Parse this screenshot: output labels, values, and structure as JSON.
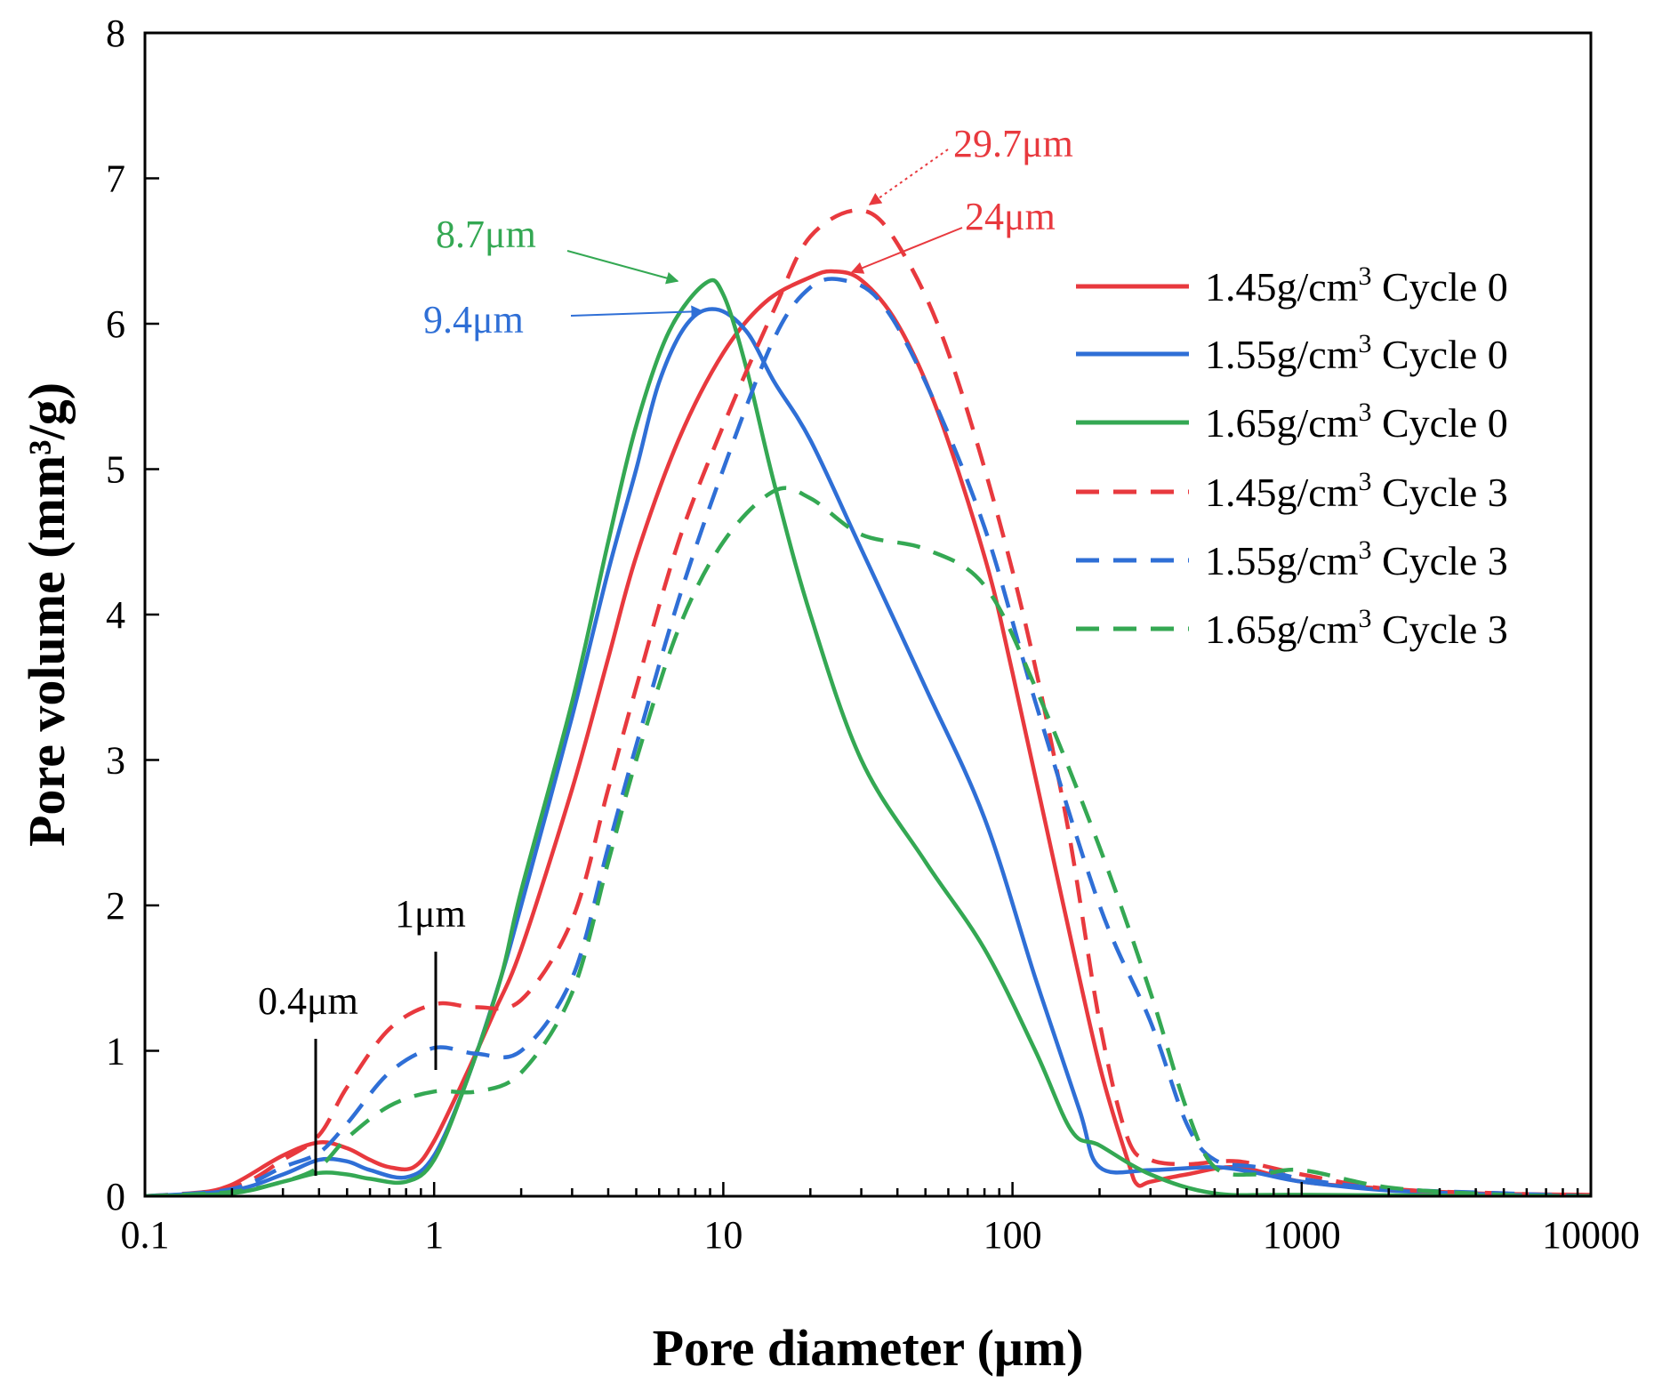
{
  "chart_data": {
    "type": "line",
    "title": "",
    "xlabel": "Pore diameter (μm)",
    "ylabel": "Pore volume (mm³/g)",
    "xscale": "log",
    "xlim": [
      0.1,
      10000
    ],
    "ylim": [
      0,
      8
    ],
    "xticks": [
      {
        "value": 0.1,
        "label": "0.1"
      },
      {
        "value": 1,
        "label": "1"
      },
      {
        "value": 10,
        "label": "10"
      },
      {
        "value": 100,
        "label": "100"
      },
      {
        "value": 1000,
        "label": "1000"
      },
      {
        "value": 10000,
        "label": "10000"
      }
    ],
    "yticks": [
      {
        "value": 0,
        "label": "0"
      },
      {
        "value": 1,
        "label": "1"
      },
      {
        "value": 2,
        "label": "2"
      },
      {
        "value": 3,
        "label": "3"
      },
      {
        "value": 4,
        "label": "4"
      },
      {
        "value": 5,
        "label": "5"
      },
      {
        "value": 6,
        "label": "6"
      },
      {
        "value": 7,
        "label": "7"
      },
      {
        "value": 8,
        "label": "8"
      }
    ],
    "legend_position": "right",
    "series": [
      {
        "name": "1.45g/cm³ Cycle 0",
        "density": "1.45g/cm",
        "cycle": "Cycle 0",
        "color": "#e8393e",
        "dash": "solid",
        "points": [
          [
            0.1,
            0
          ],
          [
            0.15,
            0.02
          ],
          [
            0.2,
            0.08
          ],
          [
            0.3,
            0.28
          ],
          [
            0.4,
            0.37
          ],
          [
            0.5,
            0.33
          ],
          [
            0.6,
            0.25
          ],
          [
            0.7,
            0.2
          ],
          [
            0.85,
            0.2
          ],
          [
            1,
            0.38
          ],
          [
            1.3,
            0.85
          ],
          [
            1.6,
            1.25
          ],
          [
            2,
            1.7
          ],
          [
            3,
            2.8
          ],
          [
            4,
            3.7
          ],
          [
            5,
            4.4
          ],
          [
            7,
            5.2
          ],
          [
            10,
            5.8
          ],
          [
            14,
            6.15
          ],
          [
            20,
            6.32
          ],
          [
            24,
            6.36
          ],
          [
            30,
            6.3
          ],
          [
            40,
            6.0
          ],
          [
            55,
            5.4
          ],
          [
            80,
            4.4
          ],
          [
            100,
            3.6
          ],
          [
            150,
            2.0
          ],
          [
            200,
            0.9
          ],
          [
            250,
            0.25
          ],
          [
            270,
            0.08
          ],
          [
            300,
            0.1
          ],
          [
            400,
            0.15
          ],
          [
            600,
            0.2
          ],
          [
            1000,
            0.1
          ],
          [
            2000,
            0.05
          ],
          [
            4000,
            0.02
          ],
          [
            10000,
            0.01
          ]
        ]
      },
      {
        "name": "1.55g/cm³ Cycle 0",
        "density": "1.55g/cm",
        "cycle": "Cycle 0",
        "color": "#2f6fd6",
        "dash": "solid",
        "points": [
          [
            0.1,
            0
          ],
          [
            0.2,
            0.04
          ],
          [
            0.3,
            0.15
          ],
          [
            0.4,
            0.25
          ],
          [
            0.5,
            0.24
          ],
          [
            0.6,
            0.18
          ],
          [
            0.8,
            0.13
          ],
          [
            1,
            0.28
          ],
          [
            1.3,
            0.8
          ],
          [
            1.7,
            1.5
          ],
          [
            2,
            2.0
          ],
          [
            3,
            3.3
          ],
          [
            4,
            4.3
          ],
          [
            5,
            5.0
          ],
          [
            6,
            5.6
          ],
          [
            7.5,
            6.0
          ],
          [
            9.4,
            6.1
          ],
          [
            12,
            5.95
          ],
          [
            15,
            5.6
          ],
          [
            20,
            5.2
          ],
          [
            30,
            4.45
          ],
          [
            50,
            3.5
          ],
          [
            80,
            2.6
          ],
          [
            120,
            1.5
          ],
          [
            170,
            0.6
          ],
          [
            200,
            0.2
          ],
          [
            300,
            0.18
          ],
          [
            500,
            0.2
          ],
          [
            700,
            0.16
          ],
          [
            1000,
            0.1
          ],
          [
            2000,
            0.04
          ],
          [
            5000,
            0.01
          ],
          [
            10000,
            0
          ]
        ]
      },
      {
        "name": "1.65g/cm³ Cycle 0",
        "density": "1.65g/cm",
        "cycle": "Cycle 0",
        "color": "#34a853",
        "dash": "solid",
        "points": [
          [
            0.1,
            0
          ],
          [
            0.2,
            0.02
          ],
          [
            0.3,
            0.1
          ],
          [
            0.4,
            0.16
          ],
          [
            0.5,
            0.15
          ],
          [
            0.6,
            0.12
          ],
          [
            0.8,
            0.1
          ],
          [
            1,
            0.25
          ],
          [
            1.3,
            0.8
          ],
          [
            1.7,
            1.5
          ],
          [
            2,
            2.1
          ],
          [
            3,
            3.4
          ],
          [
            4,
            4.5
          ],
          [
            5,
            5.3
          ],
          [
            6.5,
            5.95
          ],
          [
            8.7,
            6.28
          ],
          [
            10,
            6.2
          ],
          [
            12,
            5.7
          ],
          [
            15,
            4.9
          ],
          [
            20,
            4.0
          ],
          [
            30,
            3.0
          ],
          [
            50,
            2.3
          ],
          [
            80,
            1.7
          ],
          [
            120,
            1.0
          ],
          [
            160,
            0.45
          ],
          [
            200,
            0.35
          ],
          [
            300,
            0.15
          ],
          [
            500,
            0.02
          ],
          [
            1000,
            0.01
          ],
          [
            10000,
            0
          ]
        ]
      },
      {
        "name": "1.45g/cm³ Cycle 3",
        "density": "1.45g/cm",
        "cycle": "Cycle 3",
        "color": "#e8393e",
        "dash": "dashed",
        "points": [
          [
            0.1,
            0
          ],
          [
            0.2,
            0.06
          ],
          [
            0.3,
            0.25
          ],
          [
            0.4,
            0.42
          ],
          [
            0.5,
            0.75
          ],
          [
            0.7,
            1.15
          ],
          [
            1,
            1.32
          ],
          [
            1.4,
            1.3
          ],
          [
            2,
            1.35
          ],
          [
            3,
            1.9
          ],
          [
            4,
            2.8
          ],
          [
            5,
            3.5
          ],
          [
            7,
            4.5
          ],
          [
            10,
            5.3
          ],
          [
            15,
            6.1
          ],
          [
            20,
            6.6
          ],
          [
            29.7,
            6.78
          ],
          [
            40,
            6.55
          ],
          [
            60,
            5.8
          ],
          [
            100,
            4.3
          ],
          [
            150,
            2.7
          ],
          [
            200,
            1.2
          ],
          [
            250,
            0.4
          ],
          [
            300,
            0.25
          ],
          [
            400,
            0.22
          ],
          [
            600,
            0.24
          ],
          [
            1000,
            0.15
          ],
          [
            2000,
            0.05
          ],
          [
            5000,
            0.02
          ],
          [
            10000,
            0
          ]
        ]
      },
      {
        "name": "1.55g/cm³ Cycle 3",
        "density": "1.55g/cm",
        "cycle": "Cycle 3",
        "color": "#2f6fd6",
        "dash": "dashed",
        "points": [
          [
            0.1,
            0
          ],
          [
            0.2,
            0.05
          ],
          [
            0.3,
            0.2
          ],
          [
            0.4,
            0.3
          ],
          [
            0.5,
            0.5
          ],
          [
            0.7,
            0.85
          ],
          [
            1,
            1.02
          ],
          [
            1.4,
            0.98
          ],
          [
            2,
            1.0
          ],
          [
            3,
            1.5
          ],
          [
            4,
            2.4
          ],
          [
            5,
            3.1
          ],
          [
            7,
            4.1
          ],
          [
            10,
            5.0
          ],
          [
            15,
            5.9
          ],
          [
            20,
            6.25
          ],
          [
            26,
            6.3
          ],
          [
            35,
            6.15
          ],
          [
            50,
            5.6
          ],
          [
            80,
            4.6
          ],
          [
            120,
            3.4
          ],
          [
            200,
            2.0
          ],
          [
            300,
            1.2
          ],
          [
            400,
            0.5
          ],
          [
            500,
            0.25
          ],
          [
            700,
            0.2
          ],
          [
            1000,
            0.12
          ],
          [
            2000,
            0.05
          ],
          [
            5000,
            0.02
          ],
          [
            10000,
            0
          ]
        ]
      },
      {
        "name": "1.65g/cm³ Cycle 3",
        "density": "1.65g/cm",
        "cycle": "Cycle 3",
        "color": "#34a853",
        "dash": "dashed",
        "points": [
          [
            0.1,
            0
          ],
          [
            0.2,
            0.03
          ],
          [
            0.3,
            0.1
          ],
          [
            0.4,
            0.2
          ],
          [
            0.5,
            0.4
          ],
          [
            0.7,
            0.62
          ],
          [
            1,
            0.72
          ],
          [
            1.4,
            0.72
          ],
          [
            2,
            0.85
          ],
          [
            3,
            1.4
          ],
          [
            4,
            2.3
          ],
          [
            5,
            3.0
          ],
          [
            7,
            3.9
          ],
          [
            10,
            4.5
          ],
          [
            15,
            4.85
          ],
          [
            20,
            4.8
          ],
          [
            30,
            4.55
          ],
          [
            50,
            4.45
          ],
          [
            80,
            4.2
          ],
          [
            120,
            3.5
          ],
          [
            200,
            2.4
          ],
          [
            300,
            1.4
          ],
          [
            400,
            0.6
          ],
          [
            500,
            0.2
          ],
          [
            700,
            0.15
          ],
          [
            1000,
            0.18
          ],
          [
            2000,
            0.06
          ],
          [
            5000,
            0.01
          ],
          [
            10000,
            0
          ]
        ]
      }
    ],
    "annotations": [
      {
        "text": "8.7μm",
        "color": "#34a853",
        "arrow_to": [
          8.7,
          6.28
        ]
      },
      {
        "text": "9.4μm",
        "color": "#2f6fd6",
        "arrow_to": [
          9.4,
          6.1
        ]
      },
      {
        "text": "24μm",
        "color": "#e8393e",
        "arrow_to": [
          24,
          6.36
        ]
      },
      {
        "text": "29.7μm",
        "color": "#e8393e",
        "arrow_to": [
          29.7,
          6.78
        ]
      },
      {
        "text": "1μm",
        "color": "#000000",
        "marker_at": 1
      },
      {
        "text": "0.4μm",
        "color": "#000000",
        "marker_at": 0.4
      }
    ],
    "legend_superscript": "3"
  }
}
